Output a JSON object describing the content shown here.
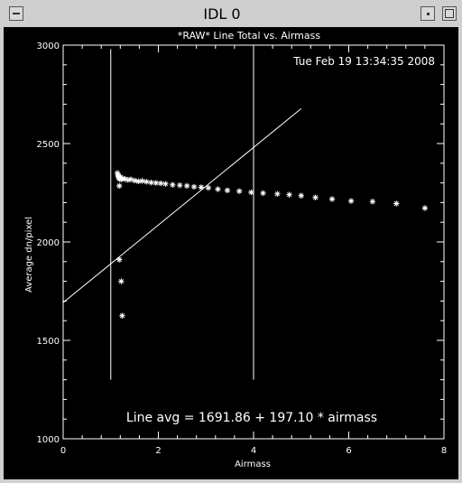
{
  "window": {
    "title": "IDL 0",
    "controls": {
      "menu_icon": "window-menu-icon",
      "minimize_icon": "minimize-icon",
      "maximize_icon": "maximize-icon"
    }
  },
  "plot": {
    "title": "*RAW* Line Total vs. Airmass",
    "timestamp": "Tue Feb 19 13:34:35 2008",
    "annotation": "Line avg = 1691.86 + 197.10 * airmass",
    "colors": {
      "background": "#000000",
      "foreground": "#ffffff"
    }
  },
  "chart_data": {
    "type": "scatter",
    "title": "*RAW* Line Total vs. Airmass",
    "xlabel": "Airmass",
    "ylabel": "Average dn/pixel",
    "xlim": [
      0,
      8
    ],
    "ylim": [
      1000,
      3000
    ],
    "x_ticks": [
      "0",
      "2",
      "4",
      "6",
      "8"
    ],
    "y_ticks": [
      "1000",
      "1500",
      "2000",
      "2500",
      "3000"
    ],
    "series": [
      {
        "marker": "asterisk",
        "points": [
          [
            1.18,
            1910
          ],
          [
            1.22,
            1800
          ],
          [
            1.24,
            1625
          ],
          [
            1.18,
            2285
          ],
          [
            1.14,
            2350
          ],
          [
            1.15,
            2340
          ],
          [
            1.16,
            2330
          ],
          [
            1.17,
            2335
          ],
          [
            1.18,
            2325
          ],
          [
            1.19,
            2320
          ],
          [
            1.2,
            2330
          ],
          [
            1.22,
            2318
          ],
          [
            1.25,
            2322
          ],
          [
            1.3,
            2320
          ],
          [
            1.36,
            2315
          ],
          [
            1.42,
            2318
          ],
          [
            1.5,
            2312
          ],
          [
            1.58,
            2308
          ],
          [
            1.66,
            2310
          ],
          [
            1.75,
            2306
          ],
          [
            1.85,
            2302
          ],
          [
            1.95,
            2300
          ],
          [
            2.05,
            2298
          ],
          [
            2.15,
            2295
          ],
          [
            2.3,
            2290
          ],
          [
            2.45,
            2288
          ],
          [
            2.6,
            2285
          ],
          [
            2.75,
            2280
          ],
          [
            2.9,
            2278
          ],
          [
            3.05,
            2275
          ],
          [
            3.25,
            2268
          ],
          [
            3.45,
            2262
          ],
          [
            3.7,
            2258
          ],
          [
            3.95,
            2252
          ],
          [
            4.2,
            2248
          ],
          [
            4.5,
            2244
          ],
          [
            4.75,
            2240
          ],
          [
            5.0,
            2235
          ],
          [
            5.3,
            2226
          ],
          [
            5.65,
            2218
          ],
          [
            6.05,
            2208
          ],
          [
            6.5,
            2205
          ],
          [
            7.0,
            2195
          ],
          [
            7.6,
            2172
          ]
        ]
      }
    ],
    "fit_line": {
      "intercept": 1691.86,
      "slope": 197.1,
      "x_range": [
        0,
        5
      ]
    },
    "vertical_lines_x": [
      1.0,
      4.0
    ]
  }
}
